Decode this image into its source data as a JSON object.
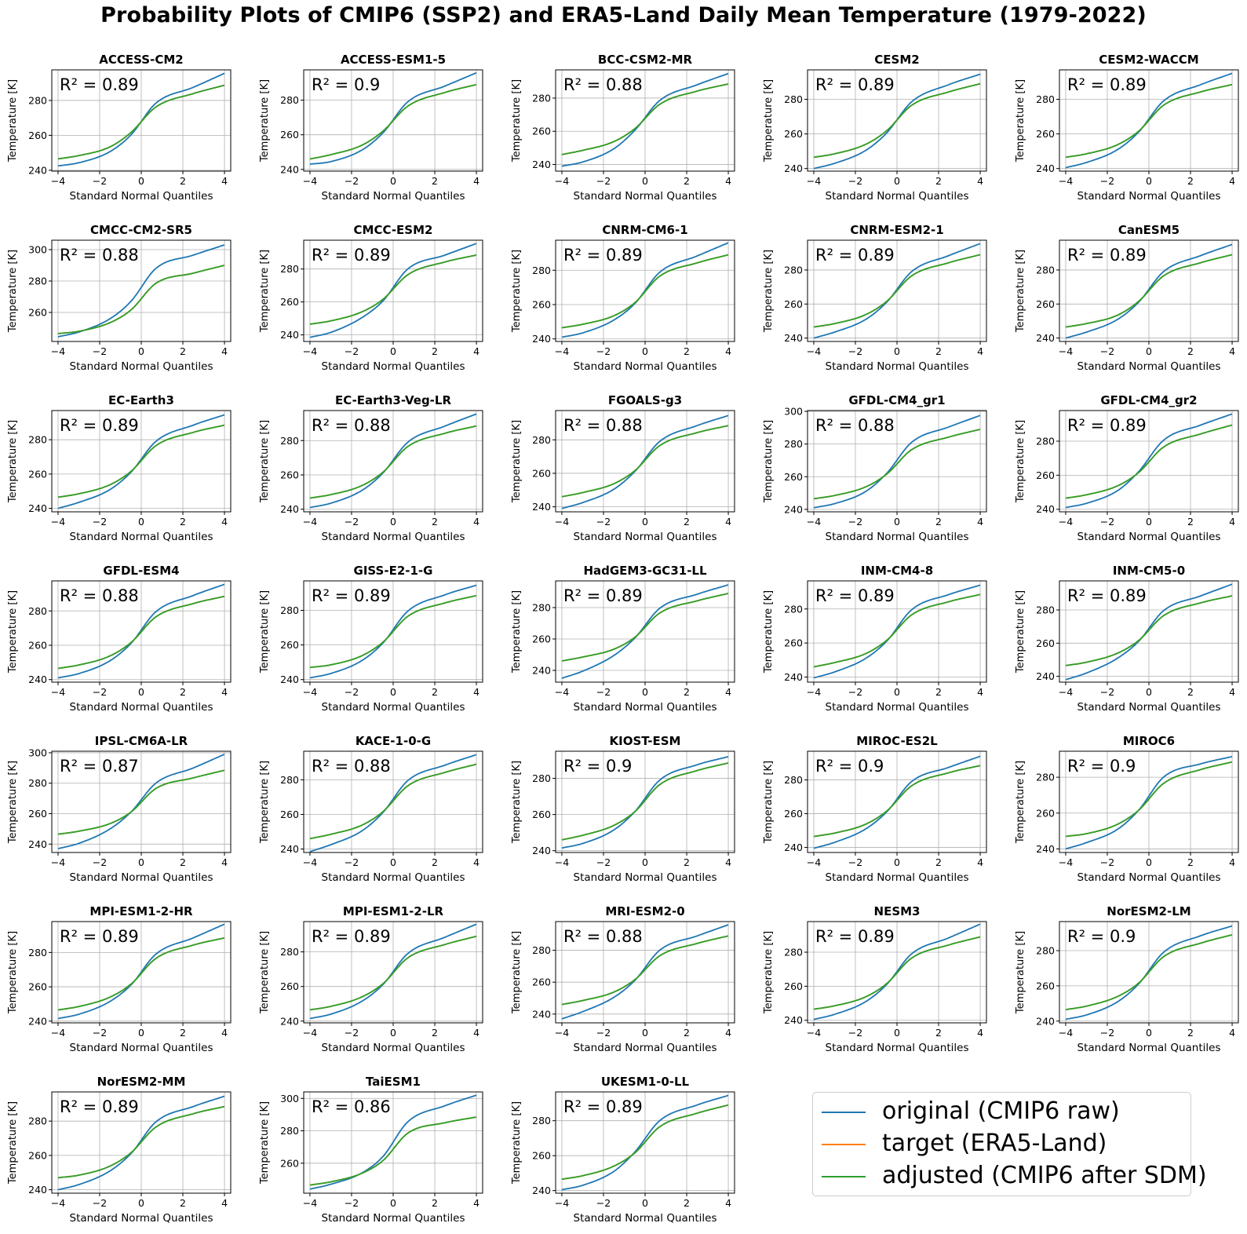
{
  "title": "Probability Plots of CMIP6 (SSP2) and ERA5-Land Daily Mean Temperature (1979-2022)",
  "colors": {
    "original": "#1f77b4",
    "target": "#ff7f0e",
    "adjusted": "#2ca02c",
    "grid": "#b0b0b0"
  },
  "legend": [
    {
      "key": "original",
      "label": "original (CMIP6 raw)"
    },
    {
      "key": "target",
      "label": "target (ERA5-Land)"
    },
    {
      "key": "adjusted",
      "label": "adjusted (CMIP6 after SDM)"
    }
  ],
  "chart_data": {
    "type": "line",
    "xlabel": "Standard Normal Quantiles",
    "ylabel": "Temperature [K]",
    "xlim": [
      -4.3,
      4.3
    ],
    "xticks": [
      -4,
      -2,
      0,
      2,
      4
    ],
    "grid": true,
    "legend_position": "bottom-right",
    "panels": [
      {
        "name": "ACCESS-CM2",
        "r2": "R² = 0.89",
        "ylim": [
          239.5,
          297.5
        ],
        "yticks": [
          240,
          260,
          280
        ],
        "original": [
          242.5,
          244.3,
          250.7,
          260.2,
          278.4,
          287.5,
          295.5
        ],
        "target": [
          246.5,
          248.4,
          253.4,
          261.6,
          276.2,
          283.9,
          288.7
        ]
      },
      {
        "name": "ACCESS-ESM1-5",
        "r2": "R² = 0.9",
        "ylim": [
          239.0,
          297.5
        ],
        "yticks": [
          240,
          260,
          280
        ],
        "original": [
          243.0,
          244.5,
          251.2,
          261.0,
          279.0,
          288.2,
          295.8
        ],
        "target": [
          246.0,
          248.5,
          254.0,
          262.0,
          276.5,
          284.5,
          289.0
        ]
      },
      {
        "name": "BCC-CSM2-MR",
        "r2": "R² = 0.88",
        "ylim": [
          236.0,
          297.0
        ],
        "yticks": [
          240,
          260,
          280
        ],
        "original": [
          239.0,
          241.5,
          249.5,
          260.5,
          278.5,
          288.0,
          294.8
        ],
        "target": [
          246.0,
          248.5,
          253.8,
          261.5,
          276.2,
          284.2,
          288.5
        ]
      },
      {
        "name": "CESM2",
        "r2": "R² = 0.89",
        "ylim": [
          238.5,
          297.0
        ],
        "yticks": [
          240,
          260,
          280
        ],
        "original": [
          240.0,
          243.0,
          250.5,
          260.5,
          278.5,
          288.5,
          294.5
        ],
        "target": [
          246.5,
          248.5,
          254.0,
          261.8,
          276.5,
          284.3,
          289.0
        ]
      },
      {
        "name": "CESM2-WACCM",
        "r2": "R² = 0.89",
        "ylim": [
          238.5,
          297.0
        ],
        "yticks": [
          240,
          260,
          280
        ],
        "original": [
          240.5,
          243.5,
          251.0,
          261.0,
          279.0,
          288.5,
          295.0
        ],
        "target": [
          246.5,
          248.5,
          253.8,
          261.5,
          276.5,
          284.3,
          288.5
        ]
      },
      {
        "name": "CMCC-CM2-SR5",
        "r2": "R² = 0.88",
        "ylim": [
          241.5,
          306.0
        ],
        "yticks": [
          260,
          280,
          300
        ],
        "original": [
          244.5,
          247.5,
          256.0,
          267.0,
          288.0,
          296.5,
          303.0
        ],
        "target": [
          246.5,
          248.0,
          253.5,
          261.5,
          278.5,
          285.0,
          290.0
        ]
      },
      {
        "name": "CMCC-ESM2",
        "r2": "R² = 0.89",
        "ylim": [
          236.0,
          297.5
        ],
        "yticks": [
          240,
          260,
          280
        ],
        "original": [
          238.5,
          241.5,
          250.5,
          260.5,
          280.0,
          288.5,
          295.5
        ],
        "target": [
          246.5,
          248.5,
          254.0,
          261.5,
          276.5,
          284.3,
          288.5
        ]
      },
      {
        "name": "CNRM-CM6-1",
        "r2": "R² = 0.89",
        "ylim": [
          238.5,
          297.5
        ],
        "yticks": [
          240,
          260,
          280
        ],
        "original": [
          241.0,
          243.5,
          251.0,
          260.5,
          278.8,
          288.3,
          296.0
        ],
        "target": [
          246.5,
          248.5,
          253.5,
          261.0,
          276.5,
          284.3,
          289.0
        ]
      },
      {
        "name": "CNRM-ESM2-1",
        "r2": "R² = 0.89",
        "ylim": [
          238.0,
          297.5
        ],
        "yticks": [
          240,
          260,
          280
        ],
        "original": [
          240.0,
          243.5,
          251.0,
          261.0,
          279.0,
          288.5,
          295.5
        ],
        "target": [
          246.5,
          248.5,
          253.8,
          261.5,
          276.5,
          284.3,
          289.0
        ]
      },
      {
        "name": "CanESM5",
        "r2": "R² = 0.89",
        "ylim": [
          238.0,
          297.5
        ],
        "yticks": [
          240,
          260,
          280
        ],
        "original": [
          240.0,
          243.5,
          251.0,
          261.0,
          279.0,
          288.5,
          295.0
        ],
        "target": [
          246.5,
          248.5,
          253.5,
          261.5,
          276.5,
          284.3,
          289.0
        ]
      },
      {
        "name": "EC-Earth3",
        "r2": "R² = 0.89",
        "ylim": [
          238.0,
          297.0
        ],
        "yticks": [
          240,
          260,
          280
        ],
        "original": [
          240.0,
          243.5,
          251.0,
          261.0,
          279.0,
          288.5,
          294.5
        ],
        "target": [
          246.5,
          248.5,
          253.8,
          261.5,
          276.5,
          284.3,
          288.5
        ]
      },
      {
        "name": "EC-Earth3-Veg-LR",
        "r2": "R² = 0.88",
        "ylim": [
          238.5,
          297.5
        ],
        "yticks": [
          240,
          260,
          280
        ],
        "original": [
          241.0,
          243.5,
          251.0,
          261.0,
          279.0,
          288.5,
          295.5
        ],
        "target": [
          246.5,
          248.5,
          253.8,
          261.5,
          276.5,
          284.3,
          288.5
        ]
      },
      {
        "name": "FGOALS-g3",
        "r2": "R² = 0.88",
        "ylim": [
          237.0,
          297.5
        ],
        "yticks": [
          240,
          260,
          280
        ],
        "original": [
          239.0,
          242.5,
          250.5,
          261.0,
          279.0,
          288.5,
          294.5
        ],
        "target": [
          246.0,
          248.5,
          253.8,
          261.5,
          276.5,
          284.3,
          288.5
        ]
      },
      {
        "name": "GFDL-CM4_gr1",
        "r2": "R² = 0.88",
        "ylim": [
          238.5,
          300.5
        ],
        "yticks": [
          240,
          260,
          280,
          300
        ],
        "original": [
          241.0,
          243.5,
          251.0,
          262.0,
          281.0,
          290.5,
          297.5
        ],
        "target": [
          246.5,
          248.5,
          253.8,
          261.5,
          276.5,
          284.3,
          289.0
        ]
      },
      {
        "name": "GFDL-CM4_gr2",
        "r2": "R² = 0.89",
        "ylim": [
          238.5,
          298.0
        ],
        "yticks": [
          240,
          260,
          280
        ],
        "original": [
          241.0,
          243.5,
          251.0,
          262.0,
          280.5,
          289.5,
          296.0
        ],
        "target": [
          246.5,
          248.5,
          253.8,
          261.5,
          276.5,
          284.3,
          289.5
        ]
      },
      {
        "name": "GFDL-ESM4",
        "r2": "R² = 0.88",
        "ylim": [
          238.5,
          297.5
        ],
        "yticks": [
          240,
          260,
          280
        ],
        "original": [
          241.0,
          243.5,
          251.0,
          261.0,
          279.5,
          289.0,
          295.5
        ],
        "target": [
          246.5,
          248.5,
          253.8,
          261.5,
          276.5,
          284.3,
          288.5
        ]
      },
      {
        "name": "GISS-E2-1-G",
        "r2": "R² = 0.89",
        "ylim": [
          238.5,
          297.0
        ],
        "yticks": [
          240,
          260,
          280
        ],
        "original": [
          241.0,
          243.5,
          251.0,
          261.0,
          279.5,
          289.0,
          294.5
        ],
        "target": [
          247.0,
          248.5,
          253.8,
          261.5,
          276.5,
          284.3,
          288.5
        ]
      },
      {
        "name": "HadGEM3-GC31-LL",
        "r2": "R² = 0.89",
        "ylim": [
          232.5,
          297.0
        ],
        "yticks": [
          240,
          260,
          280
        ],
        "original": [
          235.0,
          239.5,
          249.5,
          260.5,
          279.5,
          288.5,
          294.5
        ],
        "target": [
          246.0,
          248.5,
          253.5,
          261.0,
          276.5,
          284.3,
          289.0
        ]
      },
      {
        "name": "INM-CM4-8",
        "r2": "R² = 0.89",
        "ylim": [
          237.0,
          296.5
        ],
        "yticks": [
          240,
          260,
          280
        ],
        "original": [
          239.5,
          243.0,
          251.0,
          261.0,
          279.5,
          288.5,
          294.0
        ],
        "target": [
          246.0,
          248.5,
          253.8,
          261.5,
          276.5,
          284.3,
          288.5
        ]
      },
      {
        "name": "INM-CM5-0",
        "r2": "R² = 0.89",
        "ylim": [
          236.5,
          297.5
        ],
        "yticks": [
          240,
          260,
          280
        ],
        "original": [
          238.0,
          242.0,
          251.0,
          261.0,
          279.5,
          288.5,
          295.5
        ],
        "target": [
          246.5,
          248.5,
          254.0,
          261.5,
          276.5,
          284.3,
          288.5
        ]
      },
      {
        "name": "IPSL-CM6A-LR",
        "r2": "R² = 0.87",
        "ylim": [
          234.5,
          301.0
        ],
        "yticks": [
          240,
          260,
          280,
          300
        ],
        "original": [
          237.0,
          240.5,
          250.0,
          261.0,
          280.0,
          290.0,
          299.0
        ],
        "target": [
          246.5,
          248.5,
          253.5,
          261.0,
          276.5,
          283.5,
          288.5
        ]
      },
      {
        "name": "KACE-1-0-G",
        "r2": "R² = 0.88",
        "ylim": [
          238.0,
          296.5
        ],
        "yticks": [
          240,
          260,
          280
        ],
        "original": [
          238.5,
          242.5,
          250.5,
          261.0,
          279.5,
          288.5,
          294.5
        ],
        "target": [
          246.0,
          248.5,
          253.8,
          261.5,
          276.5,
          284.3,
          289.0
        ]
      },
      {
        "name": "KIOST-ESM",
        "r2": "R² = 0.9",
        "ylim": [
          239.0,
          295.0
        ],
        "yticks": [
          240,
          260,
          280
        ],
        "original": [
          241.5,
          244.0,
          251.5,
          261.5,
          279.0,
          287.5,
          292.0
        ],
        "target": [
          246.0,
          248.5,
          254.0,
          261.5,
          276.5,
          284.3,
          288.5
        ]
      },
      {
        "name": "MIROC-ES2L",
        "r2": "R² = 0.9",
        "ylim": [
          237.0,
          297.0
        ],
        "yticks": [
          240,
          260,
          280
        ],
        "original": [
          239.5,
          243.0,
          251.0,
          261.0,
          279.0,
          287.5,
          294.0
        ],
        "target": [
          246.5,
          248.5,
          253.8,
          261.5,
          276.5,
          284.3,
          288.5
        ]
      },
      {
        "name": "MIROC6",
        "r2": "R² = 0.9",
        "ylim": [
          238.0,
          294.5
        ],
        "yticks": [
          240,
          260,
          280
        ],
        "original": [
          240.0,
          243.5,
          251.0,
          261.5,
          280.0,
          287.5,
          291.5
        ],
        "target": [
          247.0,
          248.5,
          253.8,
          261.5,
          276.5,
          284.3,
          288.5
        ]
      },
      {
        "name": "MPI-ESM1-2-HR",
        "r2": "R² = 0.89",
        "ylim": [
          239.0,
          298.0
        ],
        "yticks": [
          240,
          260,
          280
        ],
        "original": [
          241.5,
          244.0,
          251.5,
          261.0,
          279.0,
          288.5,
          296.5
        ],
        "target": [
          246.5,
          248.5,
          254.0,
          261.5,
          276.5,
          284.3,
          288.5
        ]
      },
      {
        "name": "MPI-ESM1-2-LR",
        "r2": "R² = 0.89",
        "ylim": [
          239.0,
          297.5
        ],
        "yticks": [
          240,
          260,
          280
        ],
        "original": [
          241.5,
          244.0,
          251.5,
          261.0,
          279.0,
          288.5,
          296.0
        ],
        "target": [
          246.5,
          248.5,
          254.0,
          261.5,
          276.5,
          284.3,
          289.0
        ]
      },
      {
        "name": "MRI-ESM2-0",
        "r2": "R² = 0.88",
        "ylim": [
          234.5,
          298.0
        ],
        "yticks": [
          240,
          260,
          280
        ],
        "original": [
          237.0,
          241.5,
          250.5,
          261.0,
          280.0,
          289.0,
          296.0
        ],
        "target": [
          246.0,
          248.5,
          253.8,
          261.5,
          276.5,
          284.3,
          289.0
        ]
      },
      {
        "name": "NESM3",
        "r2": "R² = 0.89",
        "ylim": [
          238.5,
          298.0
        ],
        "yticks": [
          240,
          260,
          280
        ],
        "original": [
          240.5,
          243.5,
          251.0,
          261.0,
          279.0,
          288.5,
          296.5
        ],
        "target": [
          246.5,
          248.5,
          253.8,
          261.5,
          276.5,
          284.3,
          289.0
        ]
      },
      {
        "name": "NorESM2-LM",
        "r2": "R² = 0.9",
        "ylim": [
          239.0,
          296.5
        ],
        "yticks": [
          240,
          260,
          280
        ],
        "original": [
          241.0,
          243.5,
          251.0,
          261.0,
          279.0,
          288.5,
          294.0
        ],
        "target": [
          246.5,
          248.5,
          254.0,
          261.5,
          276.5,
          284.3,
          289.0
        ]
      },
      {
        "name": "NorESM2-MM",
        "r2": "R² = 0.89",
        "ylim": [
          238.0,
          297.0
        ],
        "yticks": [
          240,
          260,
          280
        ],
        "original": [
          240.0,
          243.0,
          251.0,
          261.0,
          279.5,
          288.5,
          294.5
        ],
        "target": [
          247.0,
          248.5,
          253.8,
          261.5,
          276.5,
          284.3,
          288.5
        ]
      },
      {
        "name": "TaiESM1",
        "r2": "R² = 0.86",
        "ylim": [
          241.5,
          304.0
        ],
        "yticks": [
          260,
          280,
          300
        ],
        "original": [
          244.0,
          247.0,
          254.0,
          264.0,
          285.5,
          295.5,
          302.0
        ],
        "target": [
          246.5,
          248.5,
          253.8,
          261.5,
          278.5,
          285.0,
          288.5
        ]
      },
      {
        "name": "UKESM1-0-LL",
        "r2": "R² = 0.89",
        "ylim": [
          238.5,
          296.5
        ],
        "yticks": [
          240,
          260,
          280
        ],
        "original": [
          240.5,
          243.0,
          251.0,
          262.0,
          280.0,
          289.0,
          294.5
        ],
        "target": [
          246.5,
          248.5,
          254.0,
          261.5,
          276.5,
          284.3,
          289.0
        ]
      }
    ]
  }
}
